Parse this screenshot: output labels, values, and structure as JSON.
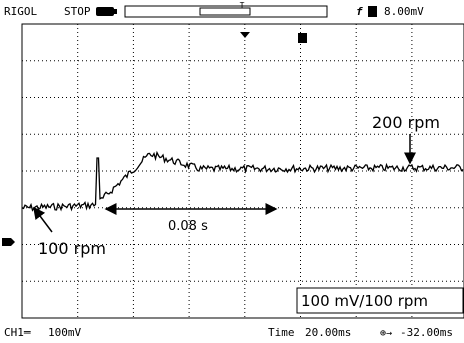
{
  "header": {
    "brand": "RIGOL",
    "status": "STOP",
    "trigger_marker": "T",
    "trigger_edge": "f",
    "trigger_level": "8.00mV"
  },
  "footer": {
    "channel": "CH1═",
    "volts_per_div": "100mV",
    "time_label": "Time",
    "time_per_div": "20.00ms",
    "offset": "-32.00ms"
  },
  "annotations": {
    "upper_speed": "200 rpm",
    "lower_speed": "100 rpm",
    "duration": "0.08 s",
    "scale": "100 mV/100 rpm"
  }
}
